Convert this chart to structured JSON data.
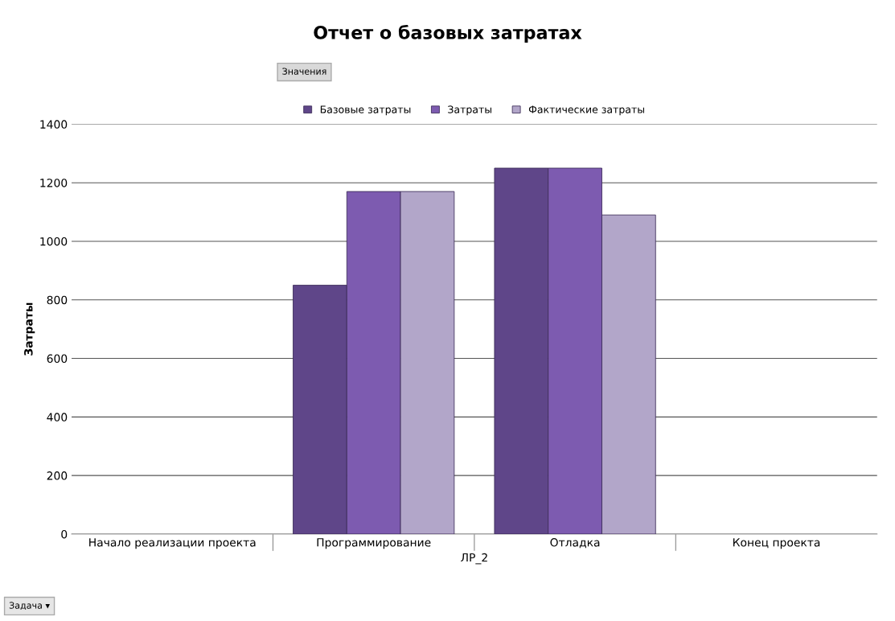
{
  "chart_data": {
    "type": "bar",
    "title": "Отчет о базовых затратах",
    "xlabel": "ЛР_2",
    "ylabel": "Затраты",
    "legend_title": "Значения",
    "annotations": [
      "Задача ▾"
    ],
    "categories": [
      "Начало реализации проекта",
      "Программирование",
      "Отладка",
      "Конец проекта"
    ],
    "series": [
      {
        "name": "Базовые затраты",
        "color": "#5f4689",
        "values": [
          null,
          850,
          1250,
          null
        ]
      },
      {
        "name": "Затраты",
        "color": "#7d5bb0",
        "values": [
          null,
          1170,
          1250,
          null
        ]
      },
      {
        "name": "Фактические затраты",
        "color": "#b2a6c9",
        "values": [
          null,
          1170,
          1090,
          null
        ]
      }
    ],
    "ylim": [
      0,
      1400
    ],
    "yticks": [
      0,
      200,
      400,
      600,
      800,
      1000,
      1200,
      1400
    ],
    "grid": "y",
    "legend": "top"
  }
}
